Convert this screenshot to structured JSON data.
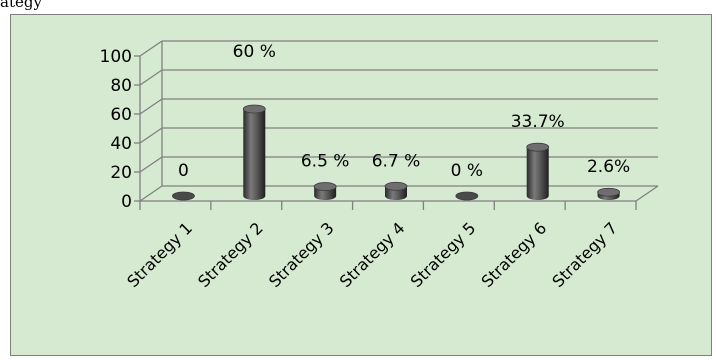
{
  "top_text": "ategy",
  "chart_data": {
    "type": "bar",
    "categories": [
      "Strategy 1",
      "Strategy 2",
      "Strategy 3",
      "Strategy 4",
      "Strategy 5",
      "Strategy 6",
      "Strategy 7"
    ],
    "values": [
      0,
      60,
      6.5,
      6.7,
      0,
      33.7,
      2.6
    ],
    "data_labels": [
      "0",
      "60 %",
      "6.5 %",
      "6.7 %",
      "0 %",
      "33.7%",
      "2.6%"
    ],
    "ylim": [
      0,
      100
    ],
    "yticks": [
      0,
      20,
      40,
      60,
      80,
      100
    ],
    "ytick_labels": [
      "0",
      "20",
      "40",
      "60",
      "80",
      "100"
    ],
    "grid": true,
    "legend": false,
    "style": "3d-cylinder",
    "colors": {
      "background": "#d5ead1",
      "bar": "#555555",
      "grid": "#808080"
    }
  }
}
